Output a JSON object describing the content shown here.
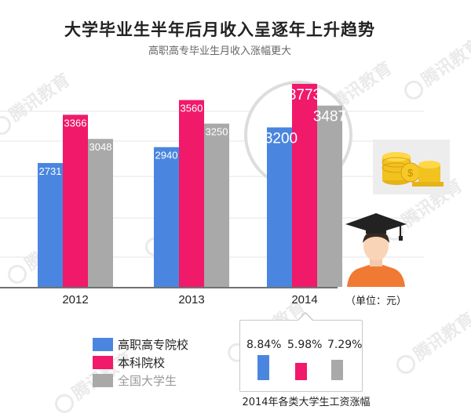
{
  "title": "大学毕业生半年后月收入呈逐年上升趋势",
  "subtitle": "高职高专毕业生月收入涨幅更大",
  "unit_label": "（单位：元）",
  "watermark_text": "腾讯教育",
  "colors": {
    "vocational": "#4a86e0",
    "undergraduate": "#f0196a",
    "national": "#a9a9a9"
  },
  "chart_data": [
    {
      "type": "bar",
      "title": "大学毕业生半年后月收入呈逐年上升趋势",
      "subtitle": "高职高专毕业生月收入涨幅更大",
      "xlabel": "",
      "ylabel": "",
      "categories": [
        "2012",
        "2013",
        "2014"
      ],
      "series": [
        {
          "name": "高职高专院校",
          "values": [
            2731,
            2940,
            3200
          ]
        },
        {
          "name": "本科院校",
          "values": [
            3366,
            3560,
            3773
          ]
        },
        {
          "name": "全国大学生",
          "values": [
            3048,
            3250,
            3487
          ]
        }
      ],
      "legend_position": "bottom-left",
      "grid": true
    },
    {
      "type": "bar",
      "title": "2014年各类大学生工资涨幅",
      "categories": [
        "高职高专院校",
        "本科院校",
        "全国大学生"
      ],
      "values": [
        8.84,
        5.98,
        7.29
      ],
      "value_labels": [
        "8.84%",
        "5.98%",
        "7.29%"
      ]
    }
  ]
}
